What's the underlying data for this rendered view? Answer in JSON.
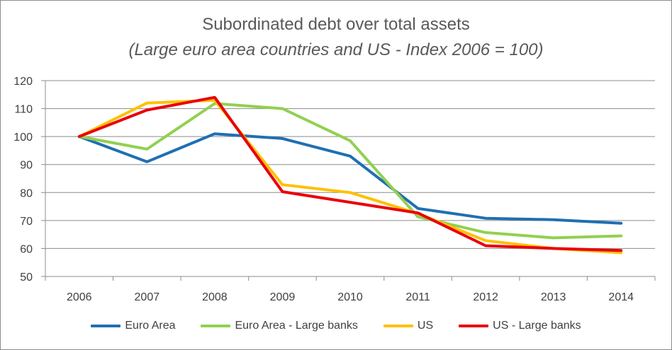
{
  "chart_data": {
    "type": "line",
    "title": "Subordinated debt over total assets",
    "subtitle": "(Large euro area countries and US - Index 2006 = 100)",
    "xlabel": "",
    "ylabel": "",
    "categories": [
      "2006",
      "2007",
      "2008",
      "2009",
      "2010",
      "2011",
      "2012",
      "2013",
      "2014"
    ],
    "ylim": [
      50,
      120
    ],
    "yticks": [
      50,
      60,
      70,
      80,
      90,
      100,
      110,
      120
    ],
    "grid": true,
    "legend_position": "bottom",
    "series": [
      {
        "name": "Euro Area",
        "color": "#1f6fb2",
        "values": [
          100,
          91,
          101,
          99.3,
          93,
          74.3,
          70.8,
          70.3,
          69
        ]
      },
      {
        "name": "Euro Area - Large banks",
        "color": "#92d050",
        "values": [
          100,
          95.5,
          111.8,
          110,
          98.5,
          71.3,
          65.7,
          63.8,
          64.5
        ]
      },
      {
        "name": "US",
        "color": "#ffc000",
        "values": [
          100,
          112,
          113,
          82.8,
          80,
          72.5,
          62.8,
          60,
          58.5
        ]
      },
      {
        "name": "US - Large banks",
        "color": "#e8000b",
        "values": [
          100,
          109.5,
          114,
          80.3,
          76.5,
          72.7,
          61,
          60,
          59.3
        ]
      }
    ]
  }
}
